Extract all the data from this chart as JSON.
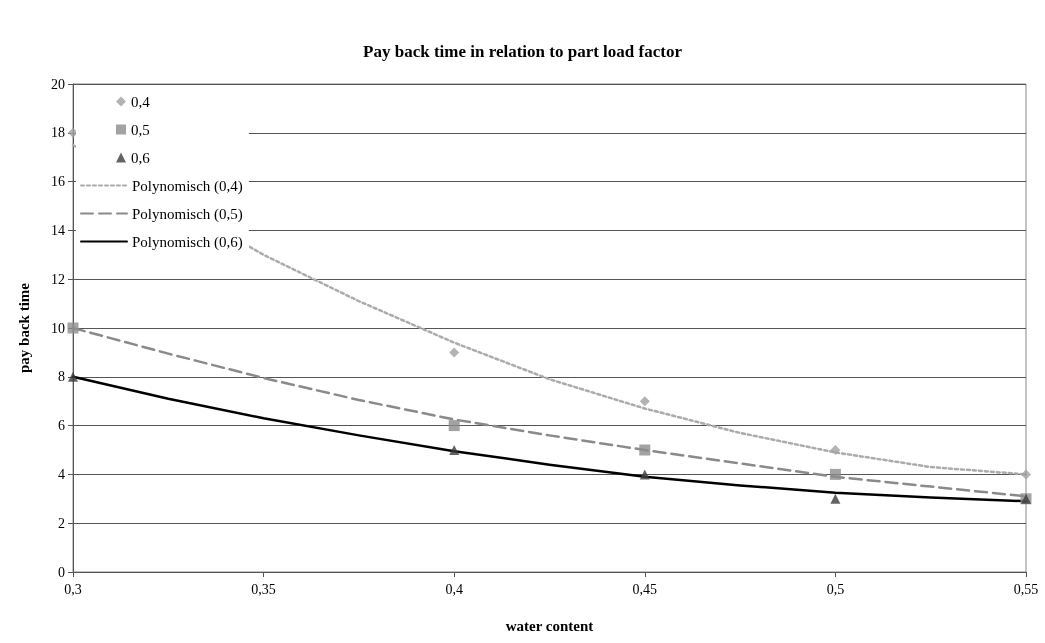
{
  "chart_data": {
    "type": "scatter",
    "title": "Pay back time in relation to part load factor",
    "xlabel": "water content",
    "ylabel": "pay back time",
    "xlim": [
      0.3,
      0.55
    ],
    "xticks": [
      {
        "value": 0.3,
        "label": "0,3"
      },
      {
        "value": 0.35,
        "label": "0,35"
      },
      {
        "value": 0.4,
        "label": "0,4"
      },
      {
        "value": 0.45,
        "label": "0,45"
      },
      {
        "value": 0.5,
        "label": "0,5"
      },
      {
        "value": 0.55,
        "label": "0,55"
      }
    ],
    "ylim": [
      0,
      20
    ],
    "yticks": [
      0,
      2,
      4,
      6,
      8,
      10,
      12,
      14,
      16,
      18,
      20
    ],
    "grid": "y",
    "legend": "top left",
    "series": [
      {
        "name": "0,4",
        "type": "scatter",
        "marker": "diamond",
        "color": "#a0a0a0",
        "x": [
          0.3,
          0.4,
          0.45,
          0.5,
          0.55
        ],
        "values": [
          18,
          9,
          7,
          5,
          4
        ]
      },
      {
        "name": "0,5",
        "type": "scatter",
        "marker": "square",
        "color": "#8c8c8c",
        "x": [
          0.3,
          0.4,
          0.45,
          0.5,
          0.55
        ],
        "values": [
          10,
          6,
          5,
          4,
          3
        ]
      },
      {
        "name": "0,6",
        "type": "scatter",
        "marker": "triangle",
        "color": "#3c3c3c",
        "x": [
          0.3,
          0.4,
          0.45,
          0.5,
          0.55
        ],
        "values": [
          8,
          5,
          4,
          3,
          3
        ]
      },
      {
        "name": "Polynomisch (0,4)",
        "type": "line",
        "line_style": "dotted",
        "marker": "none",
        "color": "#ababab",
        "x": [
          0.3,
          0.35,
          0.375,
          0.4,
          0.425,
          0.45,
          0.475,
          0.5,
          0.525,
          0.55
        ],
        "values": [
          17.5,
          13.0,
          11.1,
          9.4,
          7.9,
          6.7,
          5.7,
          4.9,
          4.3,
          4.0
        ]
      },
      {
        "name": "Polynomisch (0,5)",
        "type": "line",
        "line_style": "dashed",
        "marker": "none",
        "color": "#8a8a8a",
        "x": [
          0.3,
          0.325,
          0.35,
          0.375,
          0.4,
          0.425,
          0.45,
          0.475,
          0.5,
          0.525,
          0.55
        ],
        "values": [
          10.0,
          8.95,
          7.95,
          7.05,
          6.25,
          5.6,
          5.0,
          4.45,
          3.9,
          3.5,
          3.1
        ]
      },
      {
        "name": "Polynomisch (0,6)",
        "type": "line",
        "line_style": "solid",
        "marker": "none",
        "color": "#000000",
        "x": [
          0.3,
          0.325,
          0.35,
          0.375,
          0.4,
          0.425,
          0.45,
          0.475,
          0.5,
          0.525,
          0.55
        ],
        "values": [
          8.0,
          7.1,
          6.3,
          5.6,
          4.95,
          4.4,
          3.9,
          3.55,
          3.25,
          3.05,
          2.9
        ]
      }
    ]
  }
}
